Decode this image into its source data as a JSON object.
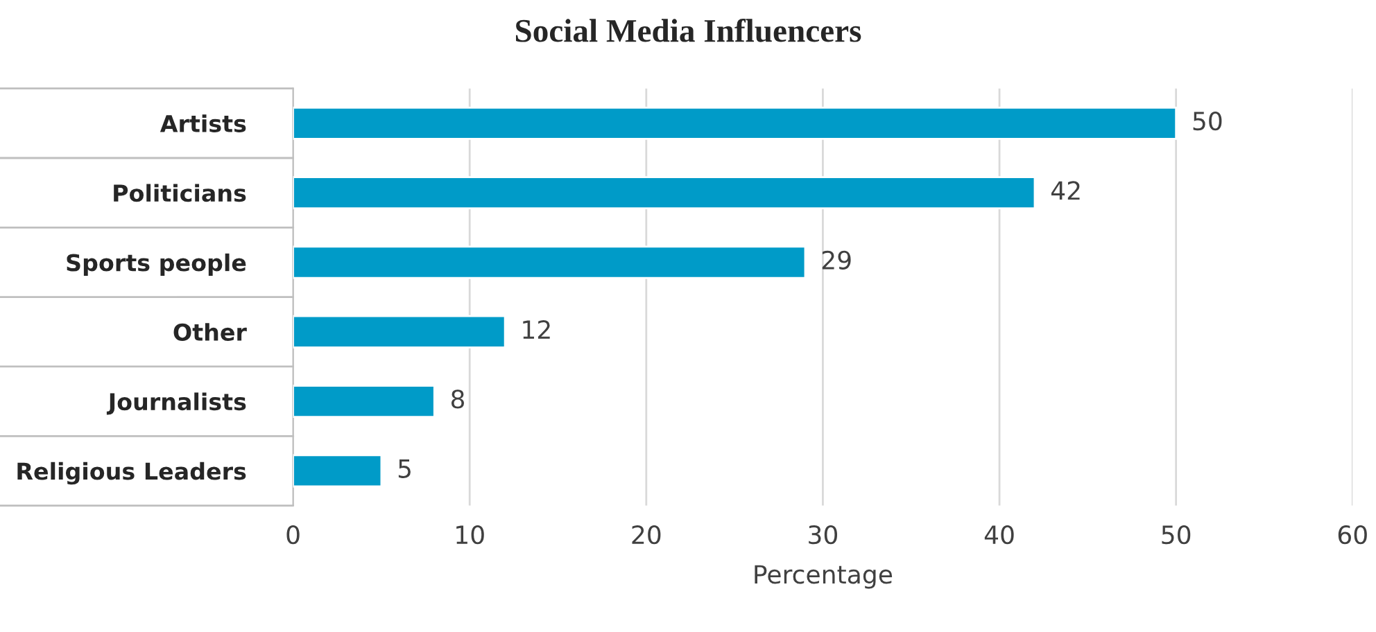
{
  "chart_data": {
    "type": "bar",
    "orientation": "horizontal",
    "title": "Social Media Influencers",
    "xlabel": "Percentage",
    "categories": [
      "Artists",
      "Politicians",
      "Sports people",
      "Other",
      "Journalists",
      "Religious Leaders"
    ],
    "values": [
      50,
      42,
      29,
      12,
      8,
      5
    ],
    "color": "#009bc8",
    "xlim": [
      0,
      60
    ],
    "xticks": [
      0,
      10,
      20,
      30,
      40,
      50,
      60
    ],
    "grid": "x",
    "data_labels": true
  }
}
